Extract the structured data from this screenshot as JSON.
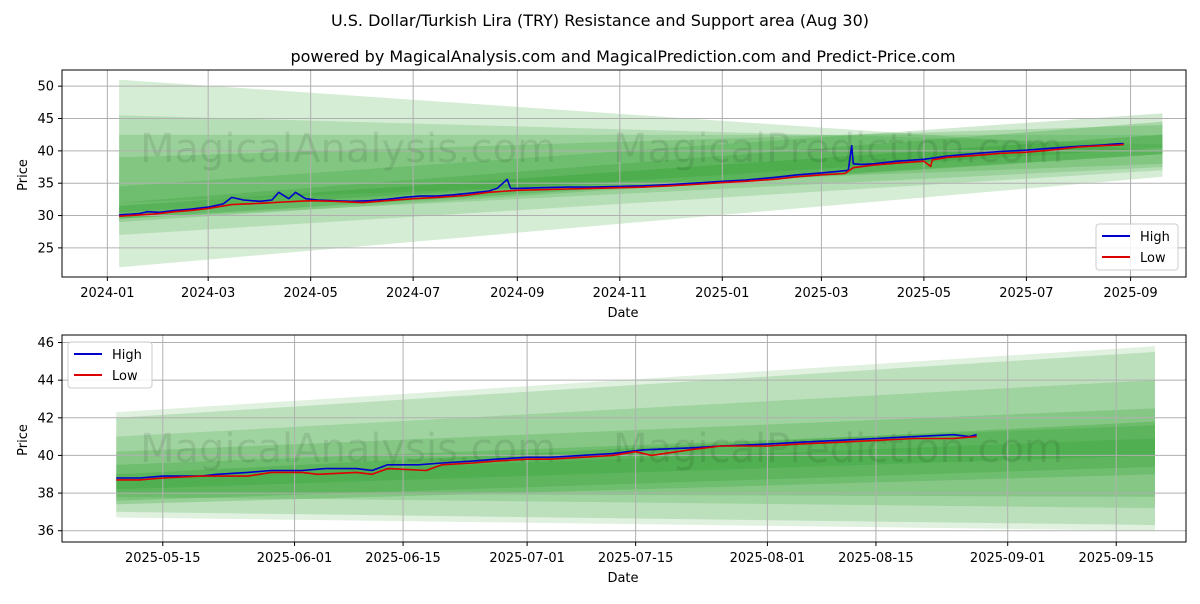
{
  "figure": {
    "title": "U.S. Dollar/Turkish Lira (TRY) Resistance and Support area (Aug 30)",
    "subtitle": "powered by MagicalAnalysis.com and MagicalPrediction.com and Predict-Price.com",
    "watermark_left": "MagicalAnalysis.com",
    "watermark_right": "MagicalPrediction.com"
  },
  "colors": {
    "high": "#0000cc",
    "low": "#dd0000",
    "band": "#2ca02c",
    "grid": "#b0b0b0"
  },
  "chart_data": [
    {
      "type": "line",
      "xlabel": "Date",
      "ylabel": "Price",
      "x_tick_labels": [
        "2024-01",
        "2024-03",
        "2024-05",
        "2024-07",
        "2024-09",
        "2024-11",
        "2025-01",
        "2025-03",
        "2025-05",
        "2025-07",
        "2025-09"
      ],
      "x_tick_dates": [
        "2024-01-01",
        "2024-03-01",
        "2024-05-01",
        "2024-07-01",
        "2024-09-01",
        "2024-11-01",
        "2025-01-01",
        "2025-03-01",
        "2025-05-01",
        "2025-07-01",
        "2025-09-01"
      ],
      "y_ticks": [
        25,
        30,
        35,
        40,
        45,
        50
      ],
      "xlim": [
        "2023-12-05",
        "2025-10-04"
      ],
      "ylim": [
        20.5,
        52.5
      ],
      "grid": true,
      "legend_position": "lower-right",
      "series": [
        {
          "name": "High",
          "x": [
            "2024-01-08",
            "2024-01-20",
            "2024-01-25",
            "2024-02-01",
            "2024-02-10",
            "2024-02-20",
            "2024-03-01",
            "2024-03-10",
            "2024-03-15",
            "2024-03-22",
            "2024-04-01",
            "2024-04-08",
            "2024-04-12",
            "2024-04-18",
            "2024-04-22",
            "2024-04-28",
            "2024-05-05",
            "2024-05-15",
            "2024-05-25",
            "2024-06-05",
            "2024-06-15",
            "2024-06-25",
            "2024-07-05",
            "2024-07-15",
            "2024-07-25",
            "2024-08-05",
            "2024-08-15",
            "2024-08-20",
            "2024-08-26",
            "2024-08-28",
            "2024-09-01",
            "2024-09-15",
            "2024-10-01",
            "2024-10-15",
            "2024-11-01",
            "2024-11-15",
            "2024-12-01",
            "2024-12-15",
            "2025-01-01",
            "2025-01-15",
            "2025-02-01",
            "2025-02-15",
            "2025-03-01",
            "2025-03-10",
            "2025-03-17",
            "2025-03-19",
            "2025-03-20",
            "2025-03-25",
            "2025-04-01",
            "2025-04-15",
            "2025-05-01",
            "2025-05-15",
            "2025-06-01",
            "2025-06-15",
            "2025-07-01",
            "2025-07-15",
            "2025-08-01",
            "2025-08-15",
            "2025-08-25",
            "2025-08-28"
          ],
          "values": [
            30.1,
            30.3,
            30.6,
            30.5,
            30.8,
            31.0,
            31.3,
            31.8,
            32.8,
            32.4,
            32.2,
            32.4,
            33.6,
            32.6,
            33.6,
            32.6,
            32.4,
            32.3,
            32.2,
            32.3,
            32.5,
            32.8,
            33.0,
            33.0,
            33.2,
            33.5,
            33.8,
            34.2,
            35.6,
            34.2,
            34.2,
            34.3,
            34.4,
            34.4,
            34.5,
            34.6,
            34.8,
            35.0,
            35.3,
            35.5,
            35.9,
            36.3,
            36.6,
            36.8,
            37.0,
            40.8,
            38.0,
            37.9,
            38.0,
            38.4,
            38.7,
            39.2,
            39.6,
            39.9,
            40.1,
            40.4,
            40.7,
            40.9,
            41.1,
            41.1
          ]
        },
        {
          "name": "Low",
          "x": [
            "2024-01-08",
            "2024-01-20",
            "2024-02-01",
            "2024-02-10",
            "2024-02-20",
            "2024-03-01",
            "2024-03-15",
            "2024-04-01",
            "2024-04-15",
            "2024-05-01",
            "2024-05-15",
            "2024-06-01",
            "2024-06-15",
            "2024-07-01",
            "2024-07-15",
            "2024-08-01",
            "2024-08-15",
            "2024-09-01",
            "2024-09-15",
            "2024-10-01",
            "2024-10-15",
            "2024-11-01",
            "2024-11-15",
            "2024-12-01",
            "2024-12-15",
            "2025-01-01",
            "2025-01-15",
            "2025-02-01",
            "2025-02-15",
            "2025-03-01",
            "2025-03-15",
            "2025-03-20",
            "2025-04-01",
            "2025-04-15",
            "2025-05-01",
            "2025-05-05",
            "2025-05-06",
            "2025-05-15",
            "2025-06-01",
            "2025-06-15",
            "2025-07-01",
            "2025-07-15",
            "2025-08-01",
            "2025-08-15",
            "2025-08-25",
            "2025-08-28"
          ],
          "values": [
            29.9,
            30.1,
            30.3,
            30.6,
            30.8,
            31.1,
            31.7,
            31.9,
            32.1,
            32.3,
            32.2,
            32.0,
            32.3,
            32.6,
            32.8,
            33.1,
            33.6,
            33.9,
            34.0,
            34.1,
            34.2,
            34.3,
            34.4,
            34.6,
            34.8,
            35.1,
            35.3,
            35.6,
            36.0,
            36.3,
            36.5,
            37.4,
            37.8,
            38.1,
            38.4,
            37.6,
            38.6,
            39.0,
            39.3,
            39.6,
            39.8,
            40.1,
            40.6,
            40.8,
            40.9,
            41.0
          ]
        }
      ]
    },
    {
      "type": "line",
      "xlabel": "Date",
      "ylabel": "Price",
      "x_tick_labels": [
        "2025-05-15",
        "2025-06-01",
        "2025-06-15",
        "2025-07-01",
        "2025-07-15",
        "2025-08-01",
        "2025-08-15",
        "2025-09-01",
        "2025-09-15"
      ],
      "x_tick_dates": [
        "2025-05-15",
        "2025-06-01",
        "2025-06-15",
        "2025-07-01",
        "2025-07-15",
        "2025-08-01",
        "2025-08-15",
        "2025-09-01",
        "2025-09-15"
      ],
      "y_ticks": [
        36,
        38,
        40,
        42,
        44,
        46
      ],
      "xlim": [
        "2025-05-02",
        "2025-09-24"
      ],
      "ylim": [
        35.4,
        46.4
      ],
      "grid": true,
      "legend_position": "upper-left",
      "series": [
        {
          "name": "High",
          "x": [
            "2025-05-09",
            "2025-05-12",
            "2025-05-15",
            "2025-05-20",
            "2025-05-22",
            "2025-05-26",
            "2025-05-29",
            "2025-06-02",
            "2025-06-05",
            "2025-06-09",
            "2025-06-11",
            "2025-06-13",
            "2025-06-17",
            "2025-06-20",
            "2025-06-24",
            "2025-06-27",
            "2025-07-01",
            "2025-07-04",
            "2025-07-08",
            "2025-07-12",
            "2025-07-16",
            "2025-07-22",
            "2025-07-26",
            "2025-08-01",
            "2025-08-05",
            "2025-08-10",
            "2025-08-15",
            "2025-08-20",
            "2025-08-25",
            "2025-08-27",
            "2025-08-28"
          ],
          "values": [
            38.8,
            38.8,
            38.9,
            38.9,
            39.0,
            39.1,
            39.2,
            39.2,
            39.3,
            39.3,
            39.2,
            39.5,
            39.5,
            39.6,
            39.7,
            39.8,
            39.9,
            39.9,
            40.0,
            40.1,
            40.3,
            40.4,
            40.5,
            40.6,
            40.7,
            40.8,
            40.9,
            41.0,
            41.1,
            41.0,
            41.1
          ]
        },
        {
          "name": "Low",
          "x": [
            "2025-05-09",
            "2025-05-12",
            "2025-05-15",
            "2025-05-20",
            "2025-05-22",
            "2025-05-26",
            "2025-05-29",
            "2025-06-02",
            "2025-06-04",
            "2025-06-09",
            "2025-06-11",
            "2025-06-13",
            "2025-06-18",
            "2025-06-20",
            "2025-06-24",
            "2025-06-27",
            "2025-07-01",
            "2025-07-04",
            "2025-07-08",
            "2025-07-12",
            "2025-07-15",
            "2025-07-17",
            "2025-07-22",
            "2025-07-26",
            "2025-08-01",
            "2025-08-05",
            "2025-08-10",
            "2025-08-15",
            "2025-08-20",
            "2025-08-25",
            "2025-08-28"
          ],
          "values": [
            38.7,
            38.7,
            38.8,
            38.9,
            38.9,
            38.9,
            39.1,
            39.1,
            39.0,
            39.1,
            39.0,
            39.3,
            39.2,
            39.5,
            39.6,
            39.7,
            39.8,
            39.8,
            39.9,
            40.0,
            40.2,
            40.0,
            40.3,
            40.5,
            40.5,
            40.6,
            40.7,
            40.8,
            40.9,
            40.9,
            41.0
          ]
        }
      ]
    }
  ]
}
